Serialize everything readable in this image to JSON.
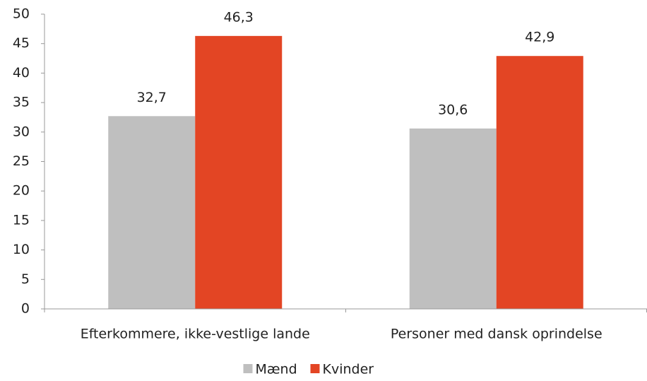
{
  "chart_data": {
    "type": "bar",
    "categories": [
      "Efterkommere, ikke-vestlige lande",
      "Personer med dansk oprindelse"
    ],
    "series": [
      {
        "name": "Mænd",
        "color": "#bfbfbf",
        "values": [
          32.7,
          30.6
        ],
        "value_labels": [
          "32,7",
          "30,6"
        ]
      },
      {
        "name": "Kvinder",
        "color": "#e34524",
        "values": [
          46.3,
          42.9
        ],
        "value_labels": [
          "46,3",
          "42,9"
        ]
      }
    ],
    "ylim": [
      0,
      50
    ],
    "yticks": [
      0,
      5,
      10,
      15,
      20,
      25,
      30,
      35,
      40,
      45,
      50
    ],
    "grid": false,
    "legend": "bottom"
  }
}
